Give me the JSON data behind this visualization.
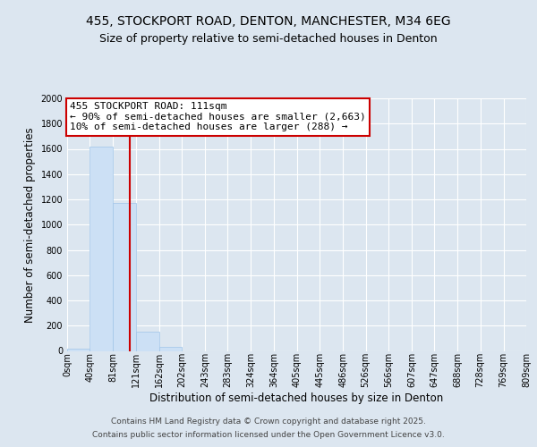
{
  "title_line1": "455, STOCKPORT ROAD, DENTON, MANCHESTER, M34 6EG",
  "title_line2": "Size of property relative to semi-detached houses in Denton",
  "xlabel": "Distribution of semi-detached houses by size in Denton",
  "ylabel": "Number of semi-detached properties",
  "bin_labels": [
    "0sqm",
    "40sqm",
    "81sqm",
    "121sqm",
    "162sqm",
    "202sqm",
    "243sqm",
    "283sqm",
    "324sqm",
    "364sqm",
    "405sqm",
    "445sqm",
    "486sqm",
    "526sqm",
    "566sqm",
    "607sqm",
    "647sqm",
    "688sqm",
    "728sqm",
    "769sqm",
    "809sqm"
  ],
  "bin_edges": [
    0,
    40,
    81,
    121,
    162,
    202,
    243,
    283,
    324,
    364,
    405,
    445,
    486,
    526,
    566,
    607,
    647,
    688,
    728,
    769,
    809
  ],
  "bar_heights": [
    20,
    1620,
    1170,
    150,
    30,
    0,
    0,
    0,
    0,
    0,
    0,
    0,
    0,
    0,
    0,
    0,
    0,
    0,
    0,
    0
  ],
  "bar_color": "#cce0f5",
  "bar_edge_color": "#a0c4e8",
  "property_size": 111,
  "red_line_color": "#cc0000",
  "annotation_line1": "455 STOCKPORT ROAD: 111sqm",
  "annotation_line2": "← 90% of semi-detached houses are smaller (2,663)",
  "annotation_line3": "10% of semi-detached houses are larger (288) →",
  "annotation_box_color": "#cc0000",
  "ylim": [
    0,
    2000
  ],
  "yticks": [
    0,
    200,
    400,
    600,
    800,
    1000,
    1200,
    1400,
    1600,
    1800,
    2000
  ],
  "background_color": "#dce6f0",
  "plot_bg_color": "#dce6f0",
  "grid_color": "#ffffff",
  "footer_line1": "Contains HM Land Registry data © Crown copyright and database right 2025.",
  "footer_line2": "Contains public sector information licensed under the Open Government Licence v3.0.",
  "title_fontsize": 10,
  "subtitle_fontsize": 9,
  "axis_label_fontsize": 8.5,
  "tick_fontsize": 7,
  "annotation_fontsize": 8,
  "footer_fontsize": 6.5
}
